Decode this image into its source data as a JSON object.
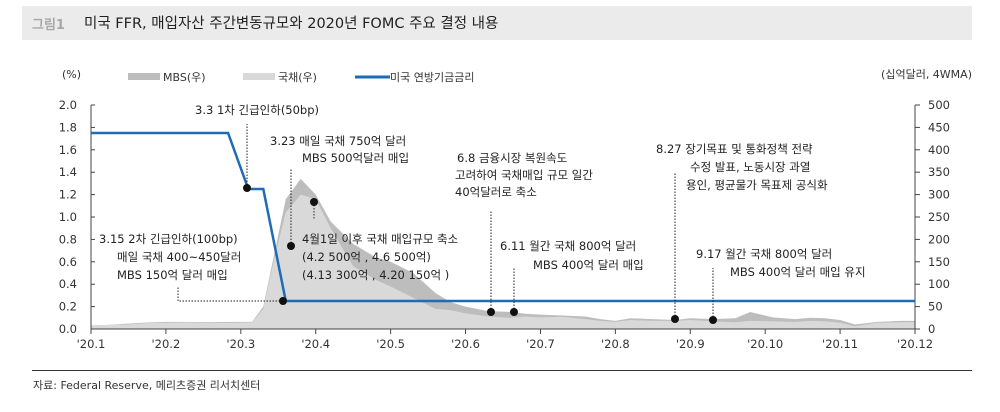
{
  "header": {
    "figure_label": "그림1",
    "title": "미국 FFR, 매입자산 주간변동규모와 2020년 FOMC 주요 결정 내용"
  },
  "source": "자료: Federal Reserve, 메리츠증권 리서치센터",
  "chart_data": {
    "type": "area",
    "title": "미국 FFR, 매입자산 주간변동규모와 2020년 FOMC 주요 결정 내용",
    "left_unit": "(%)",
    "right_unit": "(십억달러, 4WMA)",
    "categories": [
      "'20.1",
      "'20.2",
      "'20.3",
      "'20.4",
      "'20.5",
      "'20.6",
      "'20.7",
      "'20.8",
      "'20.9",
      "'20.10",
      "'20.11",
      "'20.12"
    ],
    "left_axis": {
      "min": 0,
      "max": 2.0,
      "ticks": [
        "0.0",
        "0.2",
        "0.4",
        "0.6",
        "0.8",
        "1.0",
        "1.2",
        "1.4",
        "1.6",
        "1.8",
        "2.0"
      ]
    },
    "right_axis": {
      "min": 0,
      "max": 500,
      "ticks": [
        "0",
        "50",
        "100",
        "150",
        "200",
        "250",
        "300",
        "350",
        "400",
        "450",
        "500"
      ]
    },
    "legend": [
      {
        "name": "MBS(우)",
        "color": "#bdbdbd",
        "type": "area"
      },
      {
        "name": "국채(우)",
        "color": "#d9d9d9",
        "type": "area"
      },
      {
        "name": "미국 연방기금금리",
        "color": "#1f6bb5",
        "type": "line"
      }
    ],
    "series": [
      {
        "name": "국채(우)",
        "axis": "right",
        "x": [
          0,
          0.2,
          0.5,
          0.8,
          1.0,
          1.3,
          1.6,
          1.9,
          2.15,
          2.3,
          2.45,
          2.6,
          2.8,
          3.0,
          3.2,
          3.5,
          3.8,
          4.0,
          4.3,
          4.6,
          4.8,
          5.0,
          5.3,
          5.6,
          5.8,
          6.0,
          6.3,
          6.6,
          6.8,
          7.0,
          7.2,
          7.5,
          7.8,
          8.0,
          8.3,
          8.6,
          8.8,
          9.1,
          9.4,
          9.6,
          9.8,
          10.0,
          10.2,
          10.5,
          10.8,
          11.0
        ],
        "values": [
          8,
          9,
          10,
          14,
          14,
          15,
          13,
          14,
          15,
          45,
          160,
          260,
          300,
          290,
          225,
          140,
          110,
          95,
          70,
          45,
          42,
          35,
          28,
          25,
          28,
          26,
          27,
          22,
          18,
          16,
          20,
          18,
          18,
          20,
          17,
          15,
          18,
          17,
          16,
          18,
          17,
          14,
          6,
          14,
          15,
          15
        ]
      },
      {
        "name": "MBS(우)",
        "axis": "right",
        "x": [
          0,
          0.2,
          0.5,
          0.8,
          1.0,
          1.3,
          1.6,
          1.9,
          2.15,
          2.3,
          2.45,
          2.6,
          2.8,
          3.0,
          3.2,
          3.5,
          3.8,
          4.0,
          4.3,
          4.6,
          4.8,
          5.0,
          5.3,
          5.6,
          5.8,
          6.0,
          6.3,
          6.6,
          6.8,
          7.0,
          7.2,
          7.5,
          7.8,
          8.0,
          8.3,
          8.6,
          8.8,
          9.1,
          9.4,
          9.6,
          9.8,
          10.0,
          10.2,
          10.5,
          10.8,
          11.0
        ],
        "values": [
          8,
          9,
          12,
          15,
          16,
          16,
          15,
          16,
          16,
          50,
          170,
          290,
          335,
          300,
          240,
          190,
          160,
          150,
          125,
          80,
          60,
          50,
          40,
          38,
          34,
          32,
          30,
          28,
          22,
          18,
          24,
          22,
          20,
          24,
          22,
          24,
          38,
          26,
          22,
          25,
          24,
          20,
          10,
          16,
          18,
          18
        ]
      },
      {
        "name": "미국 연방기금금리",
        "axis": "left",
        "x": [
          0,
          1.83,
          2.1,
          2.3,
          2.6,
          11.0
        ],
        "values": [
          1.75,
          1.75,
          1.25,
          1.25,
          0.25,
          0.25
        ]
      }
    ],
    "annotations": [
      {
        "id": "a33",
        "lines": [
          "3.3 1차 긴급인하(50bp)"
        ]
      },
      {
        "id": "a323",
        "lines": [
          "3.23  매일 국채 750억 달러",
          "MBS 500억달러 매입"
        ]
      },
      {
        "id": "a315",
        "lines": [
          "3.15  2차 긴급인하(100bp)",
          "매일 국채 400~450달러",
          "MBS 150억 달러 매입"
        ]
      },
      {
        "id": "a401",
        "lines": [
          "4월1일 이후 국채 매입규모  축소",
          "(4.2 500억 , 4.6 500억)",
          "(4.13 300억 , 4.20 150억 )"
        ]
      },
      {
        "id": "a68",
        "lines": [
          "6.8  금융시장 복원속도",
          "고려하여 국채매입 규모 일간",
          "40억달러로 축소"
        ]
      },
      {
        "id": "a611",
        "lines": [
          "6.11 월간 국채 800억 달러",
          "MBS 400억 달러 매입"
        ]
      },
      {
        "id": "a827",
        "lines": [
          "8.27 장기목표 및 통화정책 전략",
          "수정 발표, 노동시장 과열",
          "용인, 평균물가 목표제 공식화"
        ]
      },
      {
        "id": "a917",
        "lines": [
          "9.17 월간 국채 800억 달러",
          "MBS 400억 달러 매입 유지"
        ]
      }
    ]
  }
}
